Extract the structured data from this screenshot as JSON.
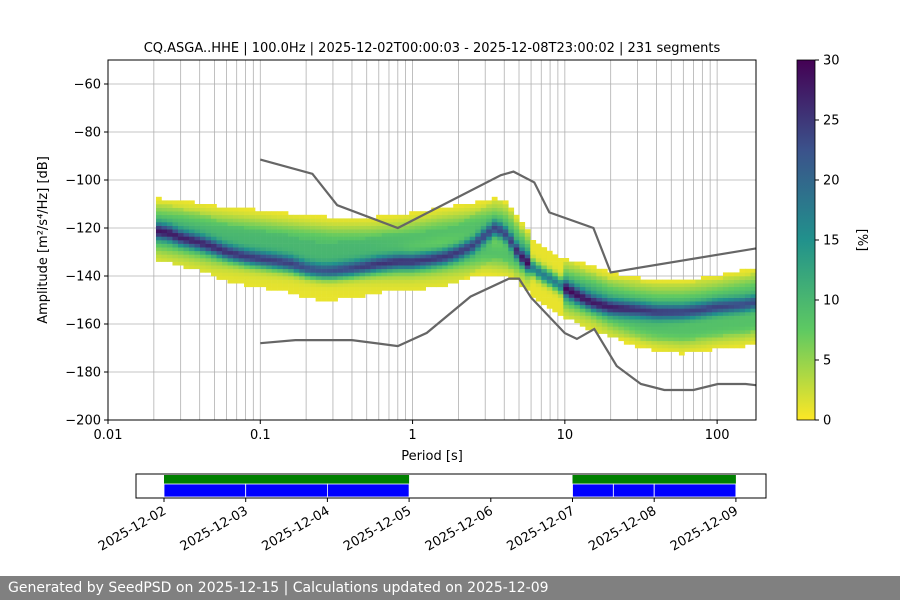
{
  "chart_data": [
    {
      "type": "heatmap",
      "subtype": "probabilistic-power-spectral-density",
      "title": "CQ.ASGA..HHE | 100.0Hz | 2025-12-02T00:00:03 - 2025-12-08T23:00:02 | 231 segments",
      "xlabel": "Period [s]",
      "ylabel": "Amplitude [m²/s⁴/Hz] [dB]",
      "xscale": "log",
      "xlim": [
        0.01,
        180
      ],
      "ylim": [
        -200,
        -50
      ],
      "x_ticks": [
        0.01,
        0.1,
        1,
        10,
        100
      ],
      "x_tick_labels": [
        "0.01",
        "0.1",
        "1",
        "10",
        "100"
      ],
      "y_ticks": [
        -200,
        -180,
        -160,
        -140,
        -120,
        -100,
        -80,
        -60
      ],
      "y_tick_labels": [
        "−200",
        "−180",
        "−160",
        "−140",
        "−120",
        "−100",
        "−80",
        "−60"
      ],
      "grid": true,
      "colorbar": {
        "label": "[%]",
        "range": [
          0,
          30
        ],
        "ticks": [
          0,
          5,
          10,
          15,
          20,
          25,
          30
        ],
        "tick_labels": [
          "0",
          "5",
          "10",
          "15",
          "20",
          "25",
          "30"
        ],
        "colormap": "viridis_r"
      },
      "mode_curve": {
        "period": [
          0.02,
          0.025,
          0.03,
          0.04,
          0.05,
          0.06,
          0.08,
          0.1,
          0.13,
          0.16,
          0.2,
          0.25,
          0.3,
          0.4,
          0.5,
          0.6,
          0.8,
          1,
          1.3,
          1.6,
          2,
          2.5,
          3,
          3.5,
          4,
          4.5,
          5,
          6,
          7,
          8,
          10,
          12,
          15,
          20,
          30,
          40,
          60,
          80,
          100,
          150,
          180
        ],
        "db": [
          -121,
          -122,
          -124,
          -126,
          -128,
          -130,
          -132,
          -133,
          -134,
          -135,
          -137,
          -138,
          -138,
          -137,
          -136,
          -135,
          -134,
          -134,
          -133,
          -132,
          -130,
          -127,
          -123,
          -120,
          -122,
          -126,
          -131,
          -136,
          -139,
          -141,
          -145,
          -148,
          -151,
          -153,
          -154,
          -155,
          -155,
          -154,
          -153,
          -152,
          -151
        ]
      },
      "spread_curves": [
        {
          "period": [
            0.02,
            0.03,
            0.05,
            0.1,
            0.2,
            0.3,
            0.5,
            0.8,
            1,
            1.5,
            2,
            2.5,
            3,
            3.5,
            4,
            4.5,
            5,
            6
          ],
          "db": [
            -117,
            -118,
            -120,
            -122,
            -124,
            -125,
            -125,
            -124,
            -123,
            -121,
            -120,
            -119,
            -118,
            -117,
            -118,
            -121,
            -125,
            -132
          ]
        },
        {
          "period": [
            0.02,
            0.03,
            0.05,
            0.1,
            0.2,
            0.3,
            0.5,
            0.8,
            1,
            1.5,
            2,
            2.5,
            3,
            4,
            5,
            6
          ],
          "db": [
            -124,
            -126,
            -129,
            -131,
            -133,
            -134,
            -134,
            -134,
            -134,
            -133,
            -132,
            -131,
            -130,
            -131,
            -133,
            -136
          ]
        },
        {
          "period": [
            10,
            15,
            20,
            30,
            40,
            60,
            80,
            100,
            150,
            180
          ],
          "db": [
            -148,
            -152,
            -156,
            -160,
            -162,
            -163,
            -162,
            -161,
            -160,
            -159
          ]
        },
        {
          "period": [
            10,
            15,
            20,
            30,
            40,
            60,
            80,
            100,
            150,
            180
          ],
          "db": [
            -142,
            -145,
            -148,
            -150,
            -151,
            -151,
            -150,
            -149,
            -147,
            -146
          ]
        }
      ],
      "upper_noise_model": {
        "period": [
          0.1,
          0.22,
          0.32,
          0.8,
          3.8,
          4.6,
          6.3,
          7.9,
          15.4,
          20,
          180
        ],
        "db": [
          -91.5,
          -97.4,
          -110.5,
          -120,
          -98,
          -96.5,
          -101,
          -113.5,
          -120,
          -138.5,
          -128.5
        ]
      },
      "lower_noise_model": {
        "period": [
          0.1,
          0.17,
          0.4,
          0.8,
          1.24,
          2.4,
          4.3,
          5,
          6,
          10,
          12,
          15.6,
          21.9,
          31.6,
          45,
          70,
          101,
          154,
          180
        ],
        "db": [
          -168,
          -166.7,
          -166.7,
          -169.2,
          -163.7,
          -148.6,
          -141.1,
          -141.1,
          -149,
          -163.8,
          -166.2,
          -162.1,
          -177.5,
          -185,
          -187.5,
          -187.5,
          -185,
          -185,
          -185.5
        ]
      }
    },
    {
      "type": "timeline",
      "x_tick_labels": [
        "2025-12-02",
        "2025-12-03",
        "2025-12-04",
        "2025-12-05",
        "2025-12-06",
        "2025-12-07",
        "2025-12-08",
        "2025-12-09"
      ],
      "data_availability": [
        [
          "2025-12-02",
          "2025-12-05"
        ],
        [
          "2025-12-07",
          "2025-12-09"
        ]
      ],
      "psd_segments": [
        [
          "2025-12-02",
          "2025-12-03"
        ],
        [
          "2025-12-03",
          "2025-12-04"
        ],
        [
          "2025-12-04",
          "2025-12-05"
        ],
        [
          "2025-12-07",
          "2025-12-07T12:00"
        ],
        [
          "2025-12-07T12:00",
          "2025-12-08"
        ],
        [
          "2025-12-08",
          "2025-12-09"
        ]
      ],
      "colors": {
        "availability": "#008000",
        "psd": "#0000ff"
      }
    }
  ],
  "footer": {
    "text": "Generated by SeedPSD on 2025-12-15 | Calculations updated on 2025-12-09"
  },
  "colors": {
    "reference_models": "#666666",
    "grid": "#b0b0b0",
    "footer_background": "#808080"
  }
}
